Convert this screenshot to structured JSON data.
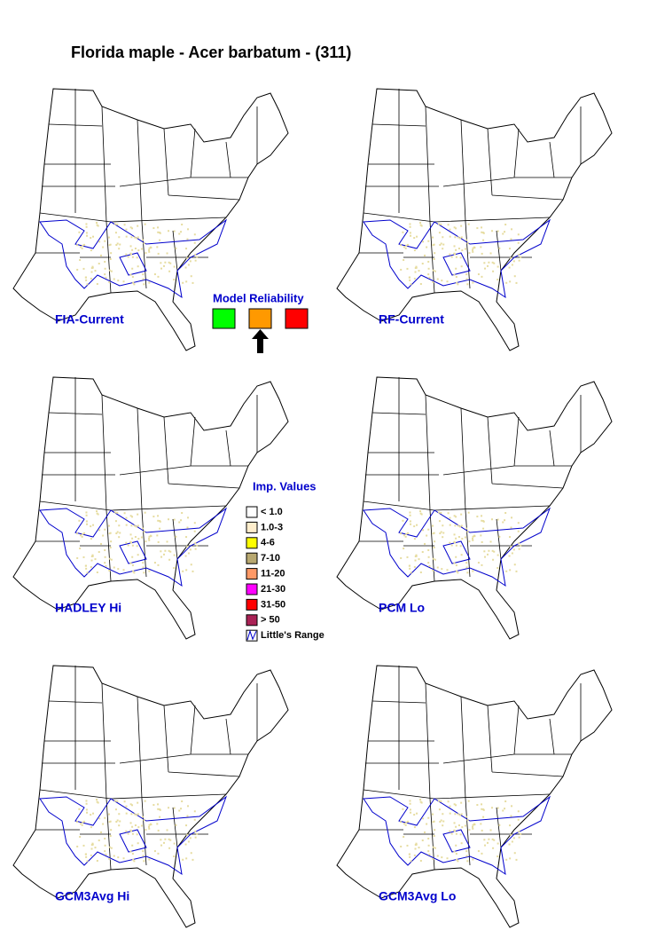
{
  "title": "Florida maple - Acer barbatum - (311)",
  "maps": [
    {
      "label": "FIA-Current"
    },
    {
      "label": "RF-Current"
    },
    {
      "label": "HADLEY Hi"
    },
    {
      "label": "PCM Lo"
    },
    {
      "label": "GCM3Avg Hi"
    },
    {
      "label": "GCM3Avg Lo"
    }
  ],
  "reliability": {
    "title": "Model Reliability",
    "colors": [
      "#00ff00",
      "#ff9900",
      "#ff0000"
    ],
    "selected_index": 1
  },
  "legend": {
    "title": "Imp. Values",
    "items": [
      {
        "label": "< 1.0",
        "color": "#ffffff"
      },
      {
        "label": "1.0-3",
        "color": "#ffeecc"
      },
      {
        "label": "4-6",
        "color": "#ffff00"
      },
      {
        "label": "7-10",
        "color": "#b8a870"
      },
      {
        "label": "11-20",
        "color": "#ff9966"
      },
      {
        "label": "21-30",
        "color": "#ff00ff"
      },
      {
        "label": "31-50",
        "color": "#ff0000"
      },
      {
        "label": "> 50",
        "color": "#aa2255"
      },
      {
        "label": "Little's Range",
        "color": "#0000cc"
      }
    ]
  }
}
